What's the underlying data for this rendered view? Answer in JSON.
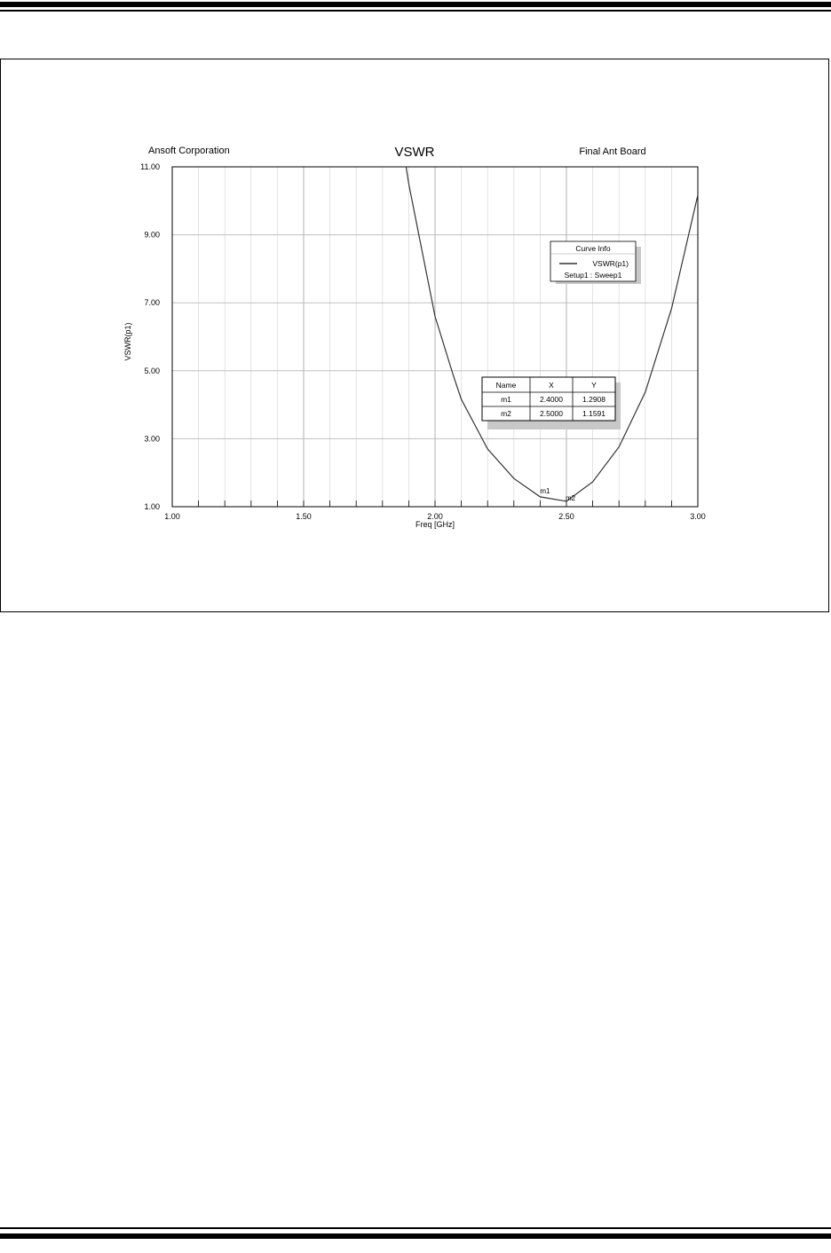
{
  "chart_data": {
    "type": "line",
    "title": "VSWR",
    "header_left": "Ansoft Corporation",
    "header_right": "Final Ant Board",
    "xlabel": "Freq [GHz]",
    "ylabel": "VSWR(p1)",
    "xlim": [
      1.0,
      3.0
    ],
    "ylim": [
      1.0,
      11.0
    ],
    "xticks": [
      "1.00",
      "1.50",
      "2.00",
      "2.50",
      "3.00"
    ],
    "yticks": [
      "1.00",
      "3.00",
      "5.00",
      "7.00",
      "9.00",
      "11.00"
    ],
    "grid": true,
    "series": [
      {
        "name": "VSWR(p1)",
        "color": "#333333",
        "x": [
          1.89,
          1.9,
          2.0,
          2.07,
          2.1,
          2.2,
          2.3,
          2.4,
          2.5,
          2.6,
          2.7,
          2.8,
          2.9,
          3.0
        ],
        "y": [
          11.0,
          10.5,
          6.6,
          4.85,
          4.16,
          2.7,
          1.83,
          1.29,
          1.16,
          1.73,
          2.76,
          4.37,
          6.83,
          10.17
        ]
      }
    ],
    "legend": {
      "title": "Curve Info",
      "entry": "VSWR(p1)",
      "subtitle": "Setup1 : Sweep1",
      "placement": "top-right"
    },
    "markers": [
      {
        "name": "m1",
        "x": 2.4,
        "y": 1.2908
      },
      {
        "name": "m2",
        "x": 2.5,
        "y": 1.1591
      }
    ],
    "marker_table": {
      "headers": [
        "Name",
        "X",
        "Y"
      ],
      "rows": [
        [
          "m1",
          "2.4000",
          "1.2908"
        ],
        [
          "m2",
          "2.5000",
          "1.1591"
        ]
      ]
    }
  }
}
